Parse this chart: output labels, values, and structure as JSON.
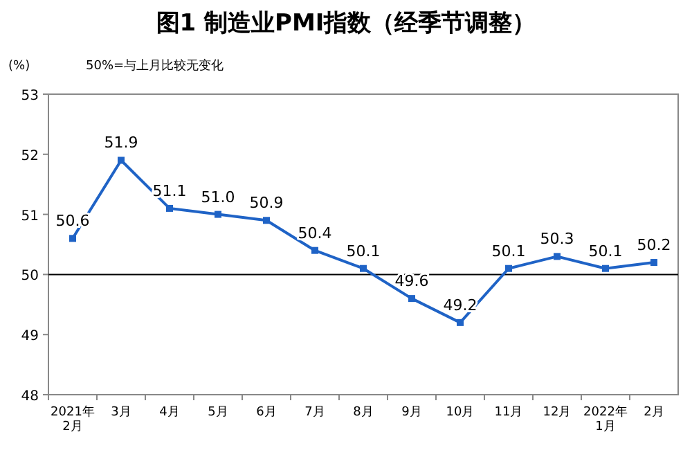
{
  "chart_data": {
    "type": "line",
    "title": "图1  制造业PMI指数（经季节调整）",
    "ylabel": "(%)",
    "annotations": [
      "50%=与上月比较无变化"
    ],
    "categories": [
      "2021年\n2月",
      "3月",
      "4月",
      "5月",
      "6月",
      "7月",
      "8月",
      "9月",
      "10月",
      "11月",
      "12月",
      "2022年\n1月",
      "2月"
    ],
    "series": [
      {
        "color": "#1f63c6",
        "values": [
          50.6,
          51.9,
          51.1,
          51.0,
          50.9,
          50.4,
          50.1,
          49.6,
          49.2,
          50.1,
          50.3,
          50.1,
          50.2
        ],
        "value_labels": [
          "50.6",
          "51.9",
          "51.1",
          "51.0",
          "50.9",
          "50.4",
          "50.1",
          "49.6",
          "49.2",
          "50.1",
          "50.3",
          "50.1",
          "50.2"
        ]
      }
    ],
    "ylim": [
      48,
      53
    ],
    "yticks": [
      48,
      49,
      50,
      51,
      52,
      53
    ],
    "ref_lines": [
      {
        "axis": "y",
        "value": 50,
        "color": "#000000"
      }
    ],
    "marker": "square"
  }
}
